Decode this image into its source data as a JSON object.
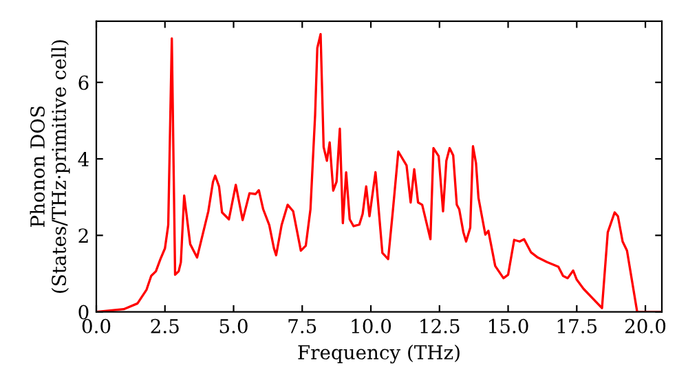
{
  "chart_data": {
    "type": "line",
    "xlabel": "Frequency (THz)",
    "ylabel": "Phonon DOS\n(States/THz·primitive cell)",
    "xlim": [
      0,
      20.6
    ],
    "ylim": [
      0,
      7.6
    ],
    "xticks": [
      {
        "value": 0,
        "label": "0.0"
      },
      {
        "value": 2.5,
        "label": "2.5"
      },
      {
        "value": 5,
        "label": "5.0"
      },
      {
        "value": 7.5,
        "label": "7.5"
      },
      {
        "value": 10,
        "label": "10.0"
      },
      {
        "value": 12.5,
        "label": "12.5"
      },
      {
        "value": 15,
        "label": "15.0"
      },
      {
        "value": 17.5,
        "label": "17.5"
      },
      {
        "value": 20,
        "label": "20.0"
      }
    ],
    "yticks": [
      0,
      2,
      4,
      6
    ],
    "grid": false,
    "legend": false,
    "marker": "none",
    "line_style": "solid",
    "series": [
      {
        "color": "#ff0000",
        "x": [
          0,
          1.0,
          1.5,
          1.83,
          2.0,
          2.17,
          2.33,
          2.5,
          2.62,
          2.75,
          2.87,
          3.0,
          3.08,
          3.2,
          3.42,
          3.67,
          4.08,
          4.25,
          4.33,
          4.47,
          4.58,
          4.83,
          5.08,
          5.33,
          5.58,
          5.8,
          5.92,
          6.08,
          6.3,
          6.47,
          6.55,
          6.75,
          6.97,
          7.17,
          7.45,
          7.63,
          7.8,
          7.97,
          8.05,
          8.17,
          8.28,
          8.4,
          8.5,
          8.63,
          8.75,
          8.87,
          8.98,
          9.1,
          9.23,
          9.37,
          9.58,
          9.7,
          9.83,
          9.95,
          10.17,
          10.42,
          10.63,
          10.8,
          11.0,
          11.3,
          11.45,
          11.58,
          11.72,
          11.87,
          12.17,
          12.28,
          12.47,
          12.63,
          12.75,
          12.87,
          13.0,
          13.13,
          13.22,
          13.37,
          13.47,
          13.62,
          13.72,
          13.83,
          13.92,
          14.17,
          14.28,
          14.53,
          14.83,
          15.0,
          15.22,
          15.42,
          15.58,
          15.83,
          16.08,
          16.42,
          16.83,
          17.0,
          17.17,
          17.37,
          17.5,
          17.75,
          18.42,
          18.63,
          18.88,
          19.0,
          19.17,
          19.33,
          19.7,
          20.6
        ],
        "values": [
          0,
          0.07,
          0.22,
          0.58,
          0.94,
          1.06,
          1.37,
          1.66,
          2.27,
          7.15,
          0.97,
          1.06,
          1.3,
          3.04,
          1.77,
          1.42,
          2.63,
          3.4,
          3.56,
          3.28,
          2.6,
          2.42,
          3.32,
          2.4,
          3.1,
          3.08,
          3.18,
          2.68,
          2.27,
          1.66,
          1.48,
          2.27,
          2.8,
          2.63,
          1.6,
          1.73,
          2.68,
          5.15,
          6.9,
          7.26,
          4.31,
          3.95,
          4.43,
          3.17,
          3.4,
          4.79,
          2.32,
          3.65,
          2.42,
          2.24,
          2.28,
          2.56,
          3.28,
          2.5,
          3.65,
          1.54,
          1.38,
          2.63,
          4.19,
          3.83,
          2.86,
          3.73,
          2.86,
          2.8,
          1.9,
          4.28,
          4.07,
          2.63,
          3.95,
          4.28,
          4.09,
          2.8,
          2.68,
          2.08,
          1.84,
          2.2,
          4.33,
          3.89,
          2.98,
          2.02,
          2.12,
          1.2,
          0.88,
          0.97,
          1.88,
          1.84,
          1.9,
          1.56,
          1.42,
          1.3,
          1.18,
          0.94,
          0.88,
          1.08,
          0.84,
          0.6,
          0.1,
          2.08,
          2.6,
          2.5,
          1.84,
          1.6,
          0,
          0
        ]
      }
    ]
  }
}
